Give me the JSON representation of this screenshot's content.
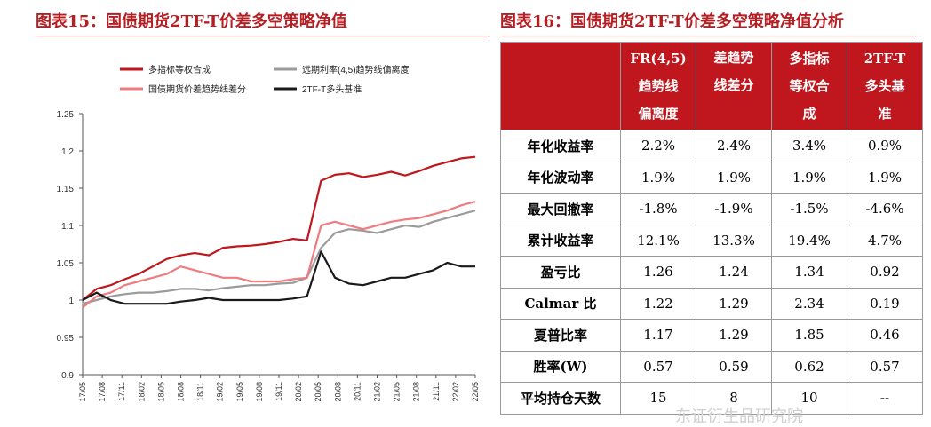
{
  "left": {
    "title": "图表15：国债期货2TF-T价差多空策略净值"
  },
  "right": {
    "title": "图表16：国债期货2TF-T价差多空策略净值分析"
  },
  "chart_data": {
    "type": "line",
    "title": "",
    "xlabel": "",
    "ylabel": "",
    "ylim": [
      0.9,
      1.25
    ],
    "yticks": [
      "0.9",
      "0.95",
      "1",
      "1.05",
      "1.1",
      "1.15",
      "1.2",
      "1.25"
    ],
    "xticks": [
      "17/05",
      "17/08",
      "17/11",
      "18/02",
      "18/05",
      "18/08",
      "18/11",
      "19/02",
      "19/05",
      "19/08",
      "19/11",
      "20/02",
      "20/05",
      "20/08",
      "20/11",
      "21/02",
      "21/05",
      "21/08",
      "21/11",
      "22/02",
      "22/05"
    ],
    "legend_position": "top",
    "grid": false,
    "series": [
      {
        "name": "多指标等权合成",
        "color": "#c0161d",
        "values": [
          1.0,
          1.015,
          1.02,
          1.028,
          1.035,
          1.045,
          1.055,
          1.06,
          1.063,
          1.06,
          1.07,
          1.072,
          1.073,
          1.075,
          1.078,
          1.082,
          1.08,
          1.16,
          1.168,
          1.17,
          1.165,
          1.168,
          1.172,
          1.167,
          1.173,
          1.18,
          1.185,
          1.19,
          1.192
        ]
      },
      {
        "name": "远期利率(4,5)趋势线偏离度",
        "color": "#9b9b9b",
        "values": [
          0.995,
          1.0,
          1.005,
          1.008,
          1.01,
          1.01,
          1.012,
          1.015,
          1.015,
          1.013,
          1.016,
          1.018,
          1.02,
          1.02,
          1.022,
          1.023,
          1.03,
          1.07,
          1.09,
          1.095,
          1.093,
          1.09,
          1.095,
          1.1,
          1.098,
          1.105,
          1.11,
          1.115,
          1.12
        ]
      },
      {
        "name": "国债期货价差趋势线差分",
        "color": "#f07c7f",
        "values": [
          0.99,
          1.005,
          1.01,
          1.02,
          1.025,
          1.03,
          1.035,
          1.045,
          1.04,
          1.035,
          1.03,
          1.03,
          1.025,
          1.025,
          1.025,
          1.028,
          1.03,
          1.1,
          1.105,
          1.1,
          1.095,
          1.1,
          1.105,
          1.108,
          1.11,
          1.115,
          1.12,
          1.127,
          1.132
        ]
      },
      {
        "name": "2TF-T多头基准",
        "color": "#1a1a1a",
        "values": [
          1.0,
          1.01,
          1.0,
          0.995,
          0.995,
          0.995,
          0.995,
          0.998,
          1.0,
          1.003,
          1.0,
          1.0,
          1.0,
          1.0,
          1.0,
          1.002,
          1.005,
          1.065,
          1.03,
          1.022,
          1.02,
          1.025,
          1.03,
          1.03,
          1.035,
          1.04,
          1.05,
          1.045,
          1.045
        ]
      }
    ]
  },
  "table": {
    "headers": [
      [
        "FR(4,5)",
        "趋势线",
        "偏离度"
      ],
      [
        "差趋势",
        "线差分"
      ],
      [
        "多指标",
        "等权合",
        "成"
      ],
      [
        "2TF-T",
        "多头基",
        "准"
      ]
    ],
    "rows": [
      {
        "label": "年化收益率",
        "values": [
          "2.2%",
          "2.4%",
          "3.4%",
          "0.9%"
        ]
      },
      {
        "label": "年化波动率",
        "values": [
          "1.9%",
          "1.9%",
          "1.9%",
          "1.9%"
        ]
      },
      {
        "label": "最大回撤率",
        "values": [
          "-1.8%",
          "-1.9%",
          "-1.5%",
          "-4.6%"
        ]
      },
      {
        "label": "累计收益率",
        "values": [
          "12.1%",
          "13.3%",
          "19.4%",
          "4.7%"
        ]
      },
      {
        "label": "盈亏比",
        "values": [
          "1.26",
          "1.24",
          "1.34",
          "0.92"
        ]
      },
      {
        "label": "Calmar 比",
        "values": [
          "1.22",
          "1.29",
          "2.34",
          "0.19"
        ]
      },
      {
        "label": "夏普比率",
        "values": [
          "1.17",
          "1.29",
          "1.85",
          "0.46"
        ]
      },
      {
        "label": "胜率(W)",
        "values": [
          "0.57",
          "0.59",
          "0.62",
          "0.57"
        ]
      },
      {
        "label": "平均持仓天数",
        "values": [
          "15",
          "8",
          "10",
          "--"
        ]
      }
    ]
  },
  "watermark": "东证衍生品研究院"
}
